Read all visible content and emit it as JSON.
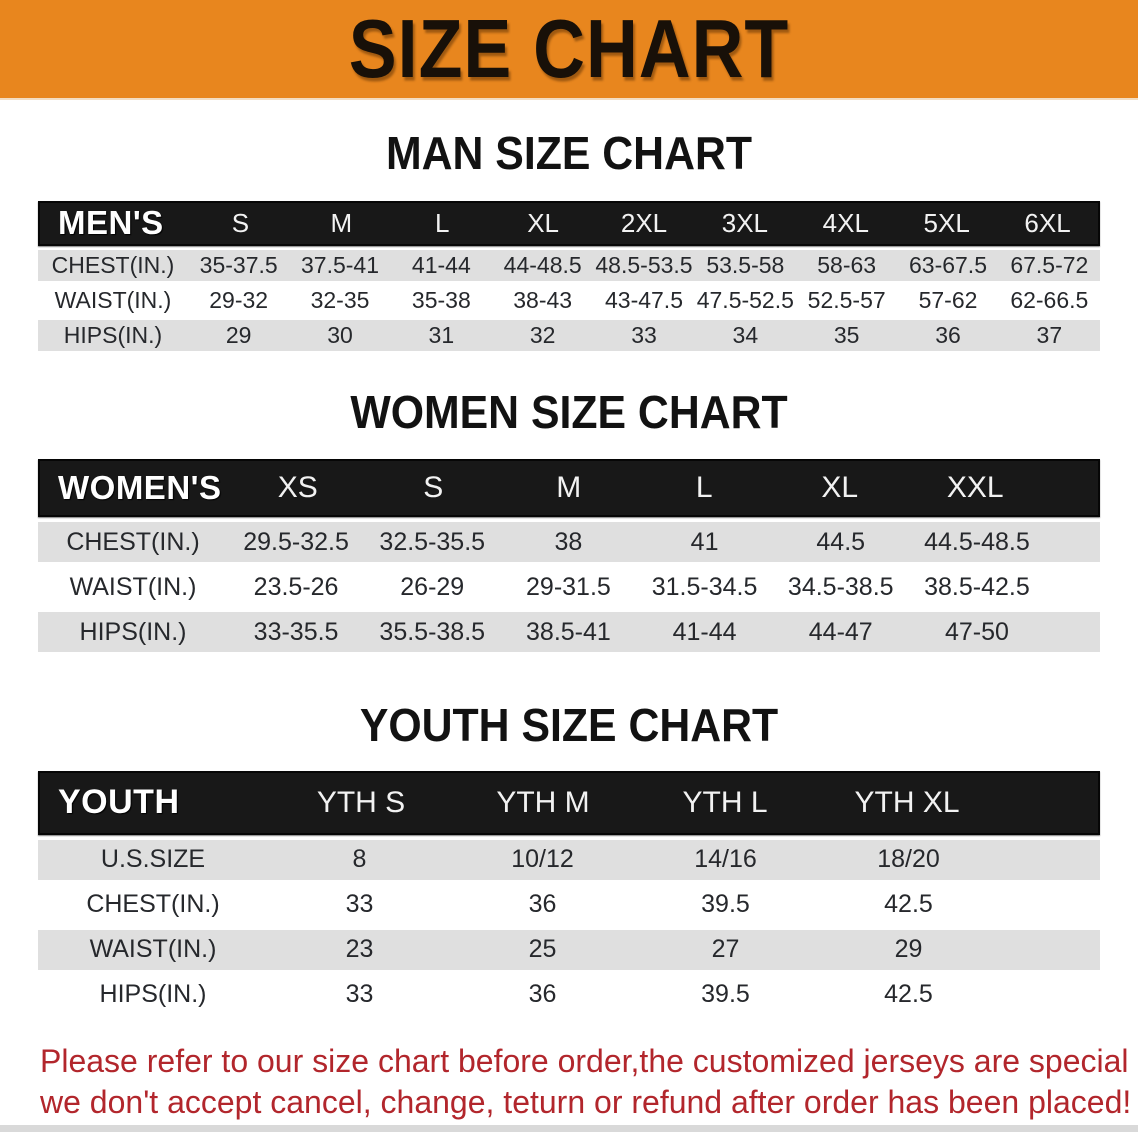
{
  "banner": {
    "title": "SIZE CHART",
    "bg_color": "#e8861e",
    "text_color": "#181008"
  },
  "sections": [
    {
      "heading": "MAN SIZE CHART",
      "table": {
        "label": "MEN'S",
        "columns": [
          "S",
          "M",
          "L",
          "XL",
          "2XL",
          "3XL",
          "4XL",
          "5XL",
          "6XL"
        ],
        "rows": [
          {
            "label": "CHEST(IN.)",
            "values": [
              "35-37.5",
              "37.5-41",
              "41-44",
              "44-48.5",
              "48.5-53.5",
              "53.5-58",
              "58-63",
              "63-67.5",
              "67.5-72"
            ]
          },
          {
            "label": "WAIST(IN.)",
            "values": [
              "29-32",
              "32-35",
              "35-38",
              "38-43",
              "43-47.5",
              "47.5-52.5",
              "52.5-57",
              "57-62",
              "62-66.5"
            ]
          },
          {
            "label": "HIPS(IN.)",
            "values": [
              "29",
              "30",
              "31",
              "32",
              "33",
              "34",
              "35",
              "36",
              "37"
            ]
          }
        ]
      }
    },
    {
      "heading": "WOMEN SIZE CHART",
      "table": {
        "label": "WOMEN'S",
        "columns": [
          "XS",
          "S",
          "M",
          "L",
          "XL",
          "XXL"
        ],
        "rows": [
          {
            "label": "CHEST(IN.)",
            "values": [
              "29.5-32.5",
              "32.5-35.5",
              "38",
              "41",
              "44.5",
              "44.5-48.5"
            ]
          },
          {
            "label": "WAIST(IN.)",
            "values": [
              "23.5-26",
              "26-29",
              "29-31.5",
              "31.5-34.5",
              "34.5-38.5",
              "38.5-42.5"
            ]
          },
          {
            "label": "HIPS(IN.)",
            "values": [
              "33-35.5",
              "35.5-38.5",
              "38.5-41",
              "41-44",
              "44-47",
              "47-50"
            ]
          }
        ]
      }
    },
    {
      "heading": "YOUTH SIZE CHART",
      "table": {
        "label": "YOUTH",
        "columns": [
          "YTH S",
          "YTH M",
          "YTH L",
          "YTH XL"
        ],
        "rows": [
          {
            "label": "U.S.SIZE",
            "values": [
              "8",
              "10/12",
              "14/16",
              "18/20"
            ]
          },
          {
            "label": "CHEST(IN.)",
            "values": [
              "33",
              "36",
              "39.5",
              "42.5"
            ]
          },
          {
            "label": "WAIST(IN.)",
            "values": [
              "23",
              "25",
              "27",
              "29"
            ]
          },
          {
            "label": "HIPS(IN.)",
            "values": [
              "33",
              "36",
              "39.5",
              "42.5"
            ]
          }
        ]
      }
    }
  ],
  "note": {
    "line1": "Please refer to our size chart before order,the customized jerseys are special products,",
    "line2": "we don't accept cancel, change, teturn or refund after order has been placed!",
    "color": "#b2262c"
  },
  "colors": {
    "banner_orange": "#e8861e",
    "header_black": "#181818",
    "row_stripe_gray": "#dfdfdf",
    "note_red": "#b2262c"
  }
}
